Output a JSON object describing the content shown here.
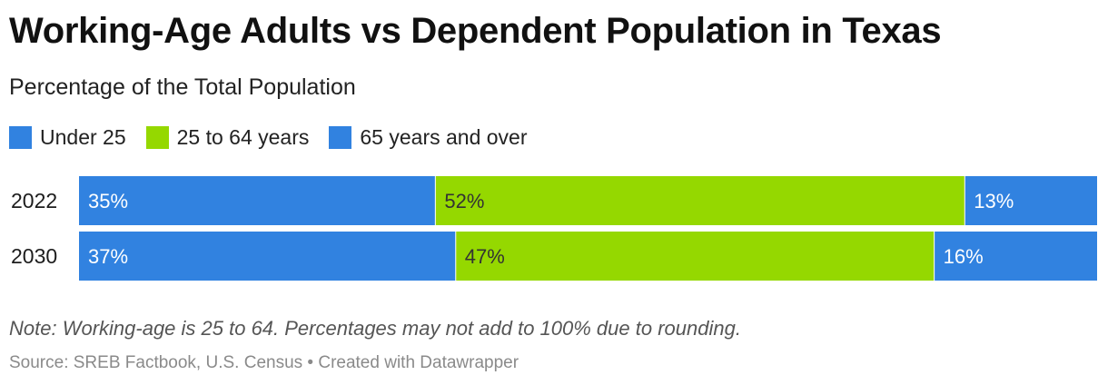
{
  "header": {
    "title": "Working-Age Adults vs Dependent Population in Texas",
    "subtitle": "Percentage of the Total Population"
  },
  "legend": [
    {
      "label": "Under 25",
      "color": "#3182e0"
    },
    {
      "label": "25 to 64 years",
      "color": "#95d800"
    },
    {
      "label": "65 years and over",
      "color": "#3182e0"
    }
  ],
  "chart_data": {
    "type": "bar",
    "orientation": "horizontal",
    "stacked": true,
    "normalized": true,
    "categories": [
      "2022",
      "2030"
    ],
    "series": [
      {
        "name": "Under 25",
        "values": [
          35,
          37
        ],
        "labels": [
          "35%",
          "37%"
        ],
        "color": "#3182e0"
      },
      {
        "name": "25 to 64 years",
        "values": [
          52,
          47
        ],
        "labels": [
          "52%",
          "47%"
        ],
        "color": "#95d800"
      },
      {
        "name": "65 years and over",
        "values": [
          13,
          16
        ],
        "labels": [
          "13%",
          "16%"
        ],
        "color": "#3182e0"
      }
    ],
    "grid": false,
    "legend_position": "top-left"
  },
  "footer": {
    "note": "Note: Working-age is 25 to 64. Percentages may not add to 100% due to rounding.",
    "source": "Source: SREB Factbook, U.S. Census • Created with Datawrapper"
  }
}
